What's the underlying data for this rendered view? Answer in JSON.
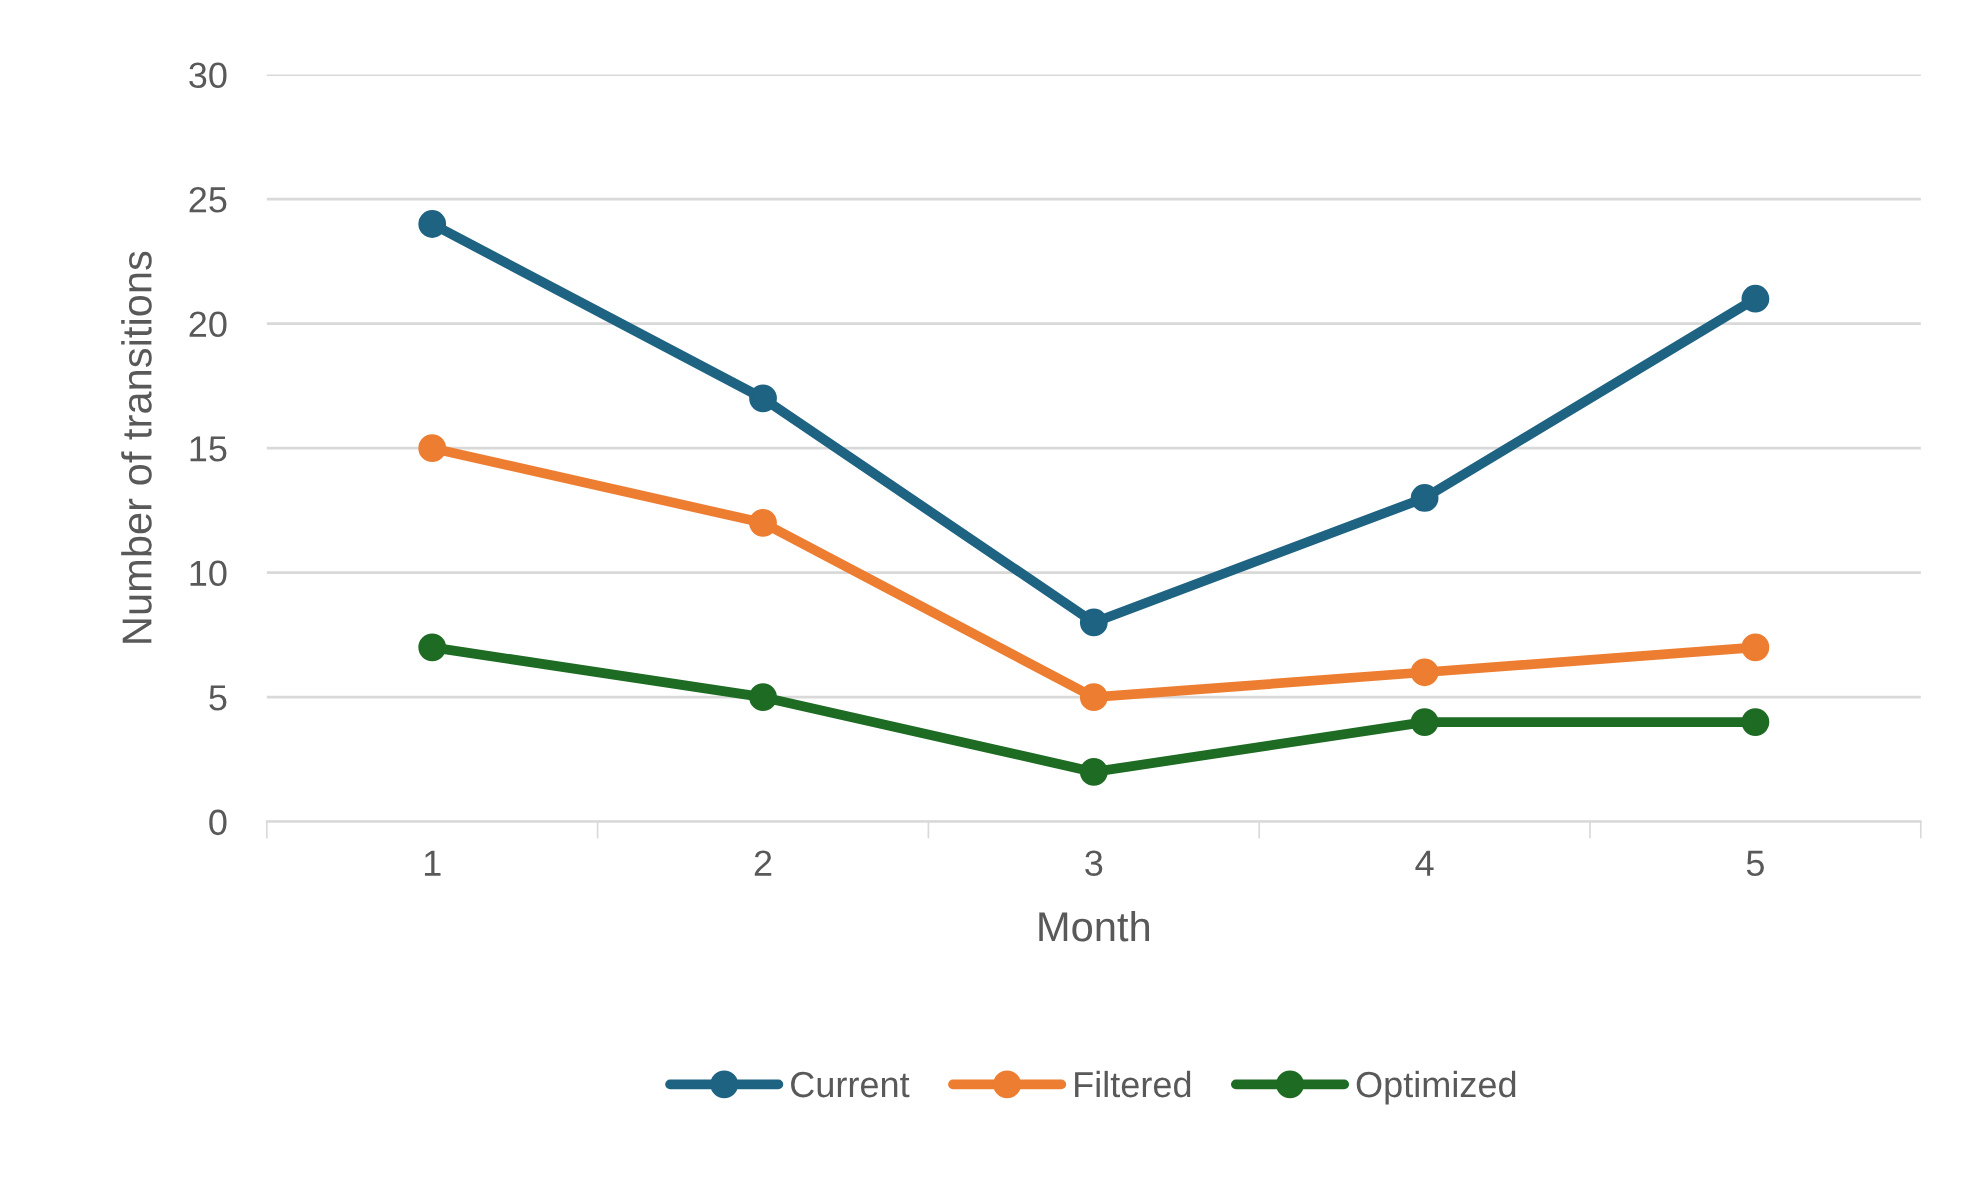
{
  "chart_data": {
    "type": "line",
    "xlabel": "Month",
    "ylabel": "Number of transitions",
    "categories": [
      "1",
      "2",
      "3",
      "4",
      "5"
    ],
    "series": [
      {
        "name": "Current",
        "color": "#1f6383",
        "values": [
          24,
          17,
          8,
          13,
          21
        ]
      },
      {
        "name": "Filtered",
        "color": "#ed7d31",
        "values": [
          15,
          12,
          5,
          6,
          7
        ]
      },
      {
        "name": "Optimized",
        "color": "#1e6b24",
        "values": [
          7,
          5,
          2,
          4,
          4
        ]
      }
    ],
    "ylim": [
      0,
      30
    ],
    "yticks": [
      0,
      5,
      10,
      15,
      20,
      25,
      30
    ],
    "grid": "y",
    "legend": "bottom",
    "marker": "circle",
    "line_style": "solid"
  }
}
